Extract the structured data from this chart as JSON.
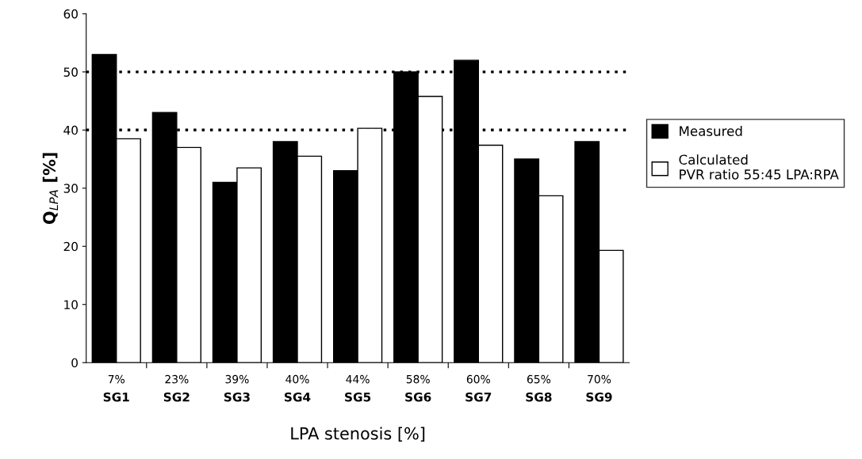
{
  "chart_data": {
    "type": "bar",
    "xlabel": "LPA stenosis [%]",
    "ylabel": "Q$_{LPA}$ [%]",
    "categories": [
      "7%\nSG1",
      "23%\nSG2",
      "39%\nSG3",
      "40%\nSG4",
      "44%\nSG5",
      "58%\nSG6",
      "60%\nSG7",
      "65%\nSG8",
      "70%\nSG9"
    ],
    "series": [
      {
        "name": "Measured",
        "color": "#000000",
        "values": [
          53,
          43,
          31,
          38,
          33,
          50,
          52,
          35,
          38
        ]
      },
      {
        "name": "Calculated\nPVR ratio 55:45 LPA:RPA",
        "color": "#ffffff",
        "values": [
          38.5,
          37,
          33.5,
          35.5,
          40.3,
          45.8,
          37.4,
          28.7,
          19.3
        ]
      }
    ],
    "ylim": [
      0,
      60
    ],
    "yticks": [
      0,
      10,
      20,
      30,
      40,
      50,
      60
    ],
    "ref_lines": [
      {
        "axis": "y",
        "value": 40,
        "color": "#000000",
        "line_style": "dotted"
      },
      {
        "axis": "y",
        "value": 50,
        "color": "#000000",
        "line_style": "dotted"
      }
    ],
    "legend": "right",
    "grid": false
  }
}
